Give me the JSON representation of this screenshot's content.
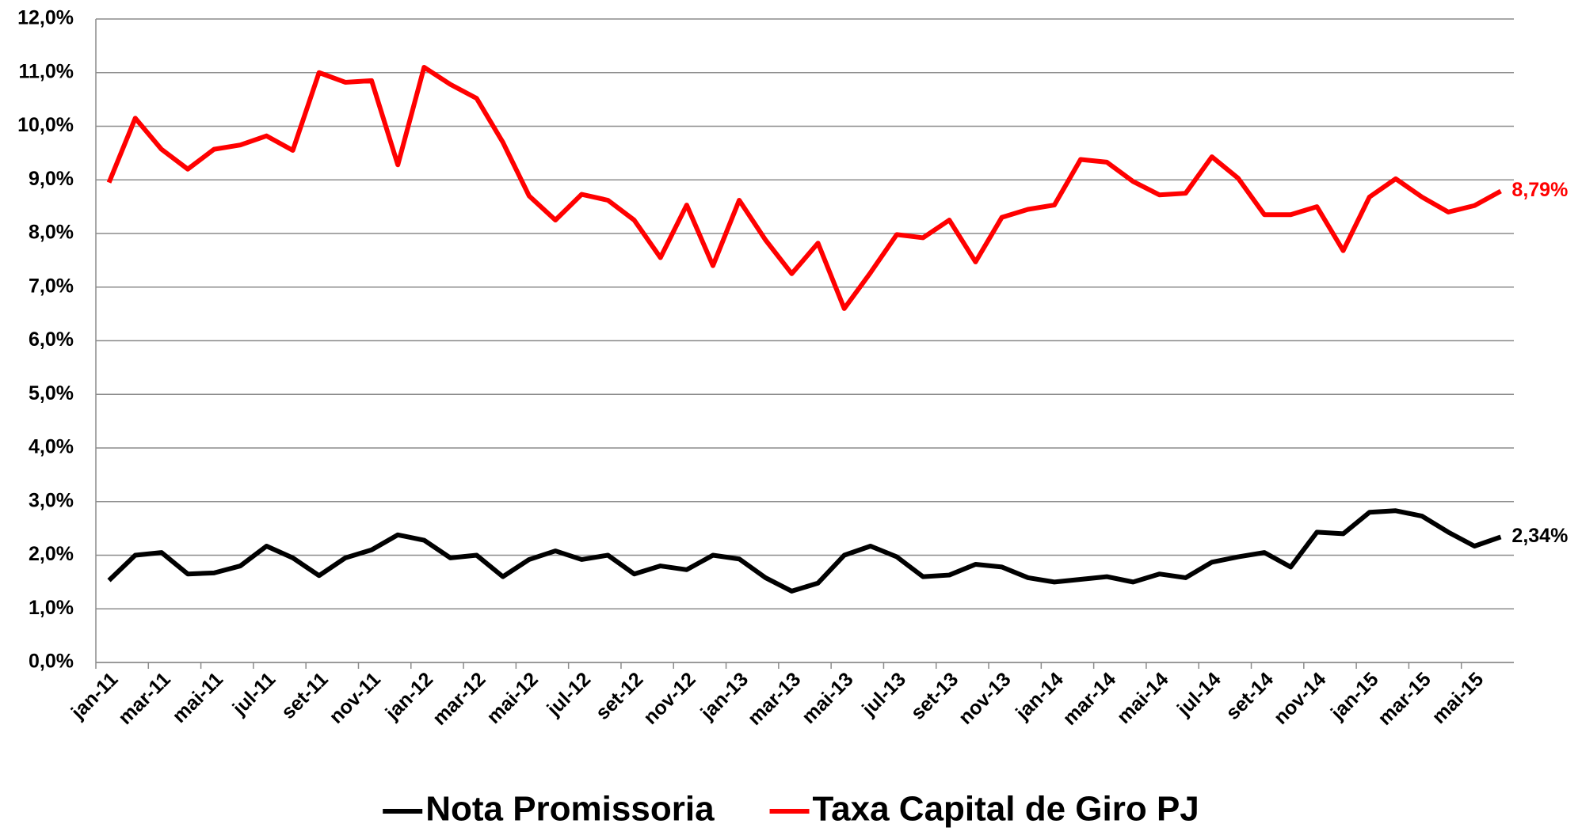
{
  "chart_data": {
    "type": "line",
    "categories": [
      "jan-11",
      null,
      "mar-11",
      null,
      "mai-11",
      null,
      "jul-11",
      null,
      "set-11",
      null,
      "nov-11",
      null,
      "jan-12",
      null,
      "mar-12",
      null,
      "mai-12",
      null,
      "jul-12",
      null,
      "set-12",
      null,
      "nov-12",
      null,
      "jan-13",
      null,
      "mar-13",
      null,
      "mai-13",
      null,
      "jul-13",
      null,
      "set-13",
      null,
      "nov-13",
      null,
      "jan-14",
      null,
      "mar-14",
      null,
      "mai-14",
      null,
      "jul-14",
      null,
      "set-14",
      null,
      "nov-14",
      null,
      "jan-15",
      null,
      "mar-15",
      null,
      "mai-15",
      null
    ],
    "series": [
      {
        "name": "Nota Promissoria",
        "color": "#000000",
        "values": [
          1.53,
          2.0,
          2.05,
          1.65,
          1.67,
          1.8,
          2.17,
          1.95,
          1.62,
          1.95,
          2.1,
          2.38,
          2.28,
          1.95,
          2.0,
          1.6,
          1.92,
          2.08,
          1.92,
          2.0,
          1.65,
          1.8,
          1.73,
          2.0,
          1.93,
          1.58,
          1.33,
          1.48,
          2.0,
          2.17,
          1.97,
          1.6,
          1.63,
          1.83,
          1.78,
          1.58,
          1.5,
          1.55,
          1.6,
          1.5,
          1.65,
          1.58,
          1.87,
          1.97,
          2.05,
          1.78,
          2.43,
          2.4,
          2.8,
          2.83,
          2.73,
          2.43,
          2.17,
          2.34
        ],
        "value_labels": [
          null,
          null,
          null,
          null,
          null,
          null,
          null,
          null,
          null,
          null,
          null,
          null,
          null,
          null,
          null,
          null,
          null,
          null,
          null,
          null,
          null,
          null,
          null,
          null,
          null,
          null,
          null,
          null,
          null,
          null,
          null,
          null,
          null,
          null,
          null,
          null,
          null,
          null,
          null,
          null,
          null,
          null,
          null,
          null,
          null,
          null,
          null,
          null,
          null,
          null,
          null,
          null,
          null,
          "2,34%"
        ]
      },
      {
        "name": "Taxa Capital de Giro PJ",
        "color": "#ff0000",
        "values": [
          8.95,
          10.15,
          9.57,
          9.2,
          9.57,
          9.65,
          9.82,
          9.55,
          11.0,
          10.82,
          10.85,
          9.28,
          11.1,
          10.78,
          10.52,
          9.7,
          8.7,
          8.25,
          8.73,
          8.62,
          8.25,
          7.55,
          8.53,
          7.4,
          8.62,
          7.88,
          7.25,
          7.82,
          6.6,
          7.27,
          7.98,
          7.92,
          8.25,
          7.47,
          8.3,
          8.45,
          8.53,
          9.38,
          9.33,
          8.97,
          8.72,
          8.75,
          9.43,
          9.03,
          8.35,
          8.35,
          8.5,
          7.68,
          8.68,
          9.02,
          8.68,
          8.4,
          8.52,
          8.79
        ],
        "value_labels": [
          null,
          null,
          null,
          null,
          null,
          null,
          null,
          null,
          null,
          null,
          null,
          null,
          null,
          null,
          null,
          null,
          null,
          null,
          null,
          null,
          null,
          null,
          null,
          null,
          null,
          null,
          null,
          null,
          null,
          null,
          null,
          null,
          null,
          null,
          null,
          null,
          null,
          null,
          null,
          null,
          null,
          null,
          null,
          null,
          null,
          null,
          null,
          null,
          null,
          null,
          null,
          null,
          null,
          "8,79%"
        ]
      }
    ],
    "ylim": [
      0,
      12
    ],
    "yticks": [
      {
        "value": 0,
        "label": "0,0%"
      },
      {
        "value": 1,
        "label": "1,0%"
      },
      {
        "value": 2,
        "label": "2,0%"
      },
      {
        "value": 3,
        "label": "3,0%"
      },
      {
        "value": 4,
        "label": "4,0%"
      },
      {
        "value": 5,
        "label": "5,0%"
      },
      {
        "value": 6,
        "label": "6,0%"
      },
      {
        "value": 7,
        "label": "7,0%"
      },
      {
        "value": 8,
        "label": "8,0%"
      },
      {
        "value": 9,
        "label": "9,0%"
      },
      {
        "value": 10,
        "label": "10,0%"
      },
      {
        "value": 11,
        "label": "11,0%"
      },
      {
        "value": 12,
        "label": "12,0%"
      }
    ],
    "grid": true,
    "legend": "bottom"
  }
}
